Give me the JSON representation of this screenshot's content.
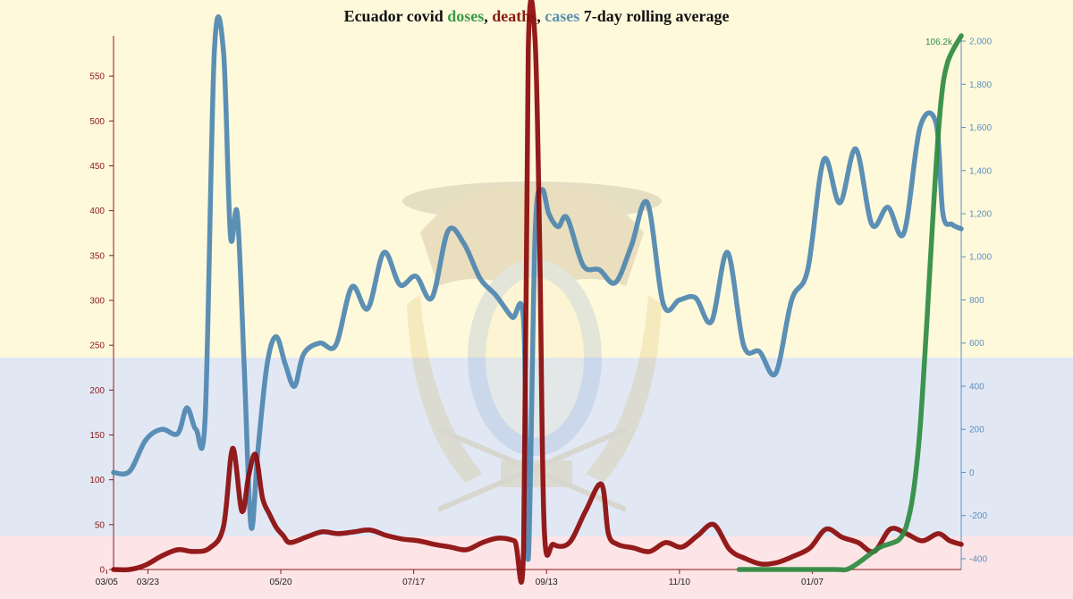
{
  "title": {
    "prefix": "Ecuador covid ",
    "doses": "doses",
    "sep1": ", ",
    "deaths": "deaths",
    "sep2": ", ",
    "cases": "cases",
    "suffix": " 7-day rolling average"
  },
  "colors": {
    "flag_yellow": "#fff9dc",
    "flag_blue": "#e1e8f4",
    "flag_red": "#fde4e6",
    "doses": "#2e8b40",
    "deaths": "#8b0a0a",
    "cases": "#4e86b0",
    "left_axis": "#8b1a1a",
    "right_axis": "#5b8fbf",
    "bottom_axis": "#8b1a1a"
  },
  "chart_data": {
    "type": "line",
    "x_ticks": [
      "03/23",
      "05/20",
      "07/17",
      "09/13",
      "11/10",
      "01/07",
      "03/05"
    ],
    "x_range": [
      "2020-03-08",
      "2021-03-13"
    ],
    "left_axis": {
      "ylim": [
        0,
        595
      ],
      "ticks": [
        0,
        50,
        100,
        150,
        200,
        250,
        300,
        350,
        400,
        450,
        500,
        550
      ]
    },
    "right_axis": {
      "ylim": [
        -450,
        2025
      ],
      "ticks": [
        -400,
        -200,
        0,
        200,
        400,
        600,
        800,
        "1,000",
        "1,200",
        "1,400",
        "1,600",
        "1,800",
        "2,000"
      ]
    },
    "doses_peak_label": "106.2k",
    "series": [
      {
        "name": "deaths",
        "axis": "left",
        "dates": [
          "2020-03-08",
          "2020-03-15",
          "2020-03-22",
          "2020-03-29",
          "2020-04-05",
          "2020-04-12",
          "2020-04-19",
          "2020-04-25",
          "2020-04-29",
          "2020-05-03",
          "2020-05-06",
          "2020-05-09",
          "2020-05-12",
          "2020-05-15",
          "2020-05-18",
          "2020-05-21",
          "2020-05-24",
          "2020-05-31",
          "2020-06-07",
          "2020-06-14",
          "2020-06-21",
          "2020-06-28",
          "2020-07-05",
          "2020-07-12",
          "2020-07-19",
          "2020-07-26",
          "2020-08-02",
          "2020-08-09",
          "2020-08-16",
          "2020-08-23",
          "2020-08-30",
          "2020-09-03",
          "2020-09-05",
          "2020-09-08",
          "2020-09-10",
          "2020-09-12",
          "2020-09-16",
          "2020-09-23",
          "2020-09-30",
          "2020-10-07",
          "2020-10-10",
          "2020-10-14",
          "2020-10-21",
          "2020-10-28",
          "2020-11-04",
          "2020-11-11",
          "2020-11-18",
          "2020-11-25",
          "2020-12-02",
          "2020-12-09",
          "2020-12-16",
          "2020-12-23",
          "2020-12-30",
          "2021-01-06",
          "2021-01-13",
          "2021-01-20",
          "2021-01-27",
          "2021-02-03",
          "2021-02-10",
          "2021-02-17",
          "2021-02-24",
          "2021-03-03",
          "2021-03-08",
          "2021-03-13"
        ],
        "values": [
          0,
          0,
          5,
          15,
          22,
          20,
          24,
          48,
          135,
          65,
          105,
          128,
          80,
          62,
          47,
          38,
          30,
          36,
          42,
          40,
          42,
          44,
          38,
          34,
          32,
          28,
          25,
          22,
          30,
          35,
          32,
          25,
          580,
          590,
          360,
          45,
          28,
          30,
          65,
          95,
          40,
          28,
          24,
          20,
          30,
          25,
          38,
          50,
          22,
          12,
          6,
          8,
          15,
          24,
          45,
          36,
          30,
          20,
          45,
          40,
          32,
          40,
          32,
          28
        ]
      },
      {
        "name": "cases",
        "axis": "right",
        "dates": [
          "2020-03-08",
          "2020-03-15",
          "2020-03-22",
          "2020-03-29",
          "2020-04-05",
          "2020-04-09",
          "2020-04-13",
          "2020-04-17",
          "2020-04-21",
          "2020-04-25",
          "2020-04-28",
          "2020-05-01",
          "2020-05-04",
          "2020-05-07",
          "2020-05-10",
          "2020-05-14",
          "2020-05-18",
          "2020-05-22",
          "2020-05-26",
          "2020-05-30",
          "2020-06-06",
          "2020-06-13",
          "2020-06-20",
          "2020-06-27",
          "2020-07-04",
          "2020-07-11",
          "2020-07-18",
          "2020-07-25",
          "2020-08-01",
          "2020-08-08",
          "2020-08-15",
          "2020-08-22",
          "2020-08-29",
          "2020-09-03",
          "2020-09-05",
          "2020-09-08",
          "2020-09-11",
          "2020-09-14",
          "2020-09-18",
          "2020-09-22",
          "2020-09-29",
          "2020-10-06",
          "2020-10-13",
          "2020-10-20",
          "2020-10-27",
          "2020-11-03",
          "2020-11-10",
          "2020-11-17",
          "2020-11-24",
          "2020-12-01",
          "2020-12-08",
          "2020-12-15",
          "2020-12-22",
          "2020-12-29",
          "2021-01-05",
          "2021-01-12",
          "2021-01-19",
          "2021-01-26",
          "2021-02-02",
          "2021-02-09",
          "2021-02-16",
          "2021-02-23",
          "2021-03-02",
          "2021-03-05",
          "2021-03-09",
          "2021-03-13"
        ],
        "values": [
          0,
          5,
          150,
          200,
          180,
          300,
          200,
          260,
          1950,
          1950,
          1100,
          1200,
          500,
          -250,
          100,
          500,
          630,
          500,
          400,
          550,
          600,
          590,
          860,
          760,
          1020,
          870,
          910,
          810,
          1120,
          1060,
          900,
          820,
          720,
          700,
          -400,
          1100,
          1310,
          1200,
          1140,
          1180,
          960,
          940,
          880,
          1050,
          1250,
          780,
          800,
          810,
          700,
          1020,
          590,
          560,
          460,
          800,
          940,
          1450,
          1250,
          1500,
          1150,
          1230,
          1110,
          1600,
          1620,
          1200,
          1150,
          1130
        ]
      },
      {
        "name": "doses",
        "axis": "right",
        "dates": [
          "2020-12-06",
          "2020-12-27",
          "2021-01-17",
          "2021-01-22",
          "2021-01-27",
          "2021-02-05",
          "2021-02-10",
          "2021-02-14",
          "2021-02-17",
          "2021-02-20",
          "2021-02-23",
          "2021-02-26",
          "2021-03-01",
          "2021-03-04",
          "2021-03-07",
          "2021-03-13"
        ],
        "values": [
          -520,
          -520,
          -520,
          -480,
          -420,
          -350,
          -330,
          -310,
          -250,
          -100,
          200,
          700,
          1250,
          1700,
          1900,
          2050
        ]
      }
    ]
  }
}
